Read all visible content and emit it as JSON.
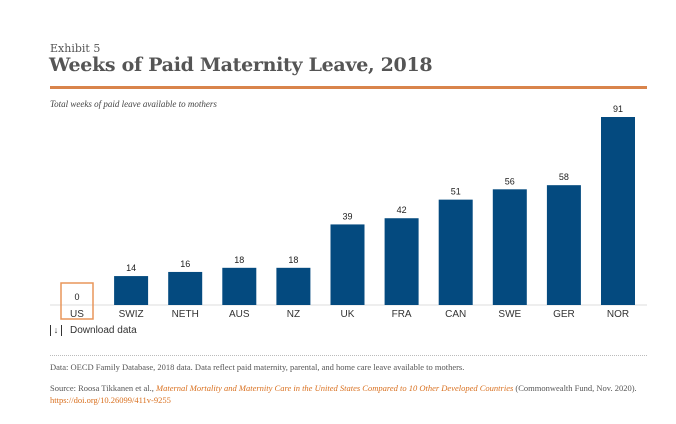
{
  "header": {
    "exhibit": "Exhibit 5",
    "title": "Weeks of Paid Maternity Leave, 2018",
    "subtitle": "Total weeks of paid leave available to mothers"
  },
  "chart_data": {
    "type": "bar",
    "categories": [
      "US",
      "SWIZ",
      "NETH",
      "AUS",
      "NZ",
      "UK",
      "FRA",
      "CAN",
      "SWE",
      "GER",
      "NOR"
    ],
    "values": [
      0,
      14,
      16,
      18,
      18,
      39,
      42,
      51,
      56,
      58,
      91
    ],
    "ylim": [
      0,
      91
    ],
    "grid": false,
    "highlight": "US",
    "colors": {
      "bar": "#044a7f",
      "highlight": "#e8955a"
    }
  },
  "download": {
    "label": "Download data",
    "icon": "download-icon"
  },
  "footer": {
    "note": "Data: OECD Family Database, 2018 data. Data reflect paid maternity, parental, and home care leave available to mothers.",
    "source_prefix": "Source: Roosa Tikkanen et al., ",
    "source_title": "Maternal Mortality and Maternity Care in the United States Compared to 10 Other Developed Countries",
    "source_suffix": " (Commonwealth Fund, Nov. 2020). ",
    "source_link": "https://doi.org/10.26099/411v-9255"
  }
}
